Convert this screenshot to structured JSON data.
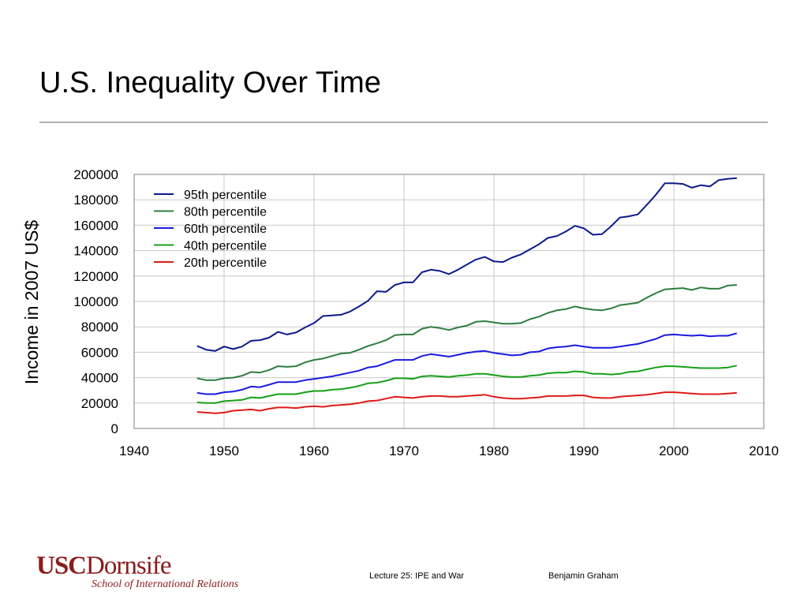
{
  "slide": {
    "title": "U.S. Inequality Over Time"
  },
  "footer": {
    "logo_usc": "USC",
    "logo_dornsife": "Dornsife",
    "logo_school": "School of International Relations",
    "lecture": "Lecture 25: IPE and War",
    "author": "Benjamin Graham"
  },
  "chart_data": {
    "type": "line",
    "title": "",
    "xlabel": "",
    "ylabel": "Income in 2007 US$",
    "xlim": [
      1940,
      2010
    ],
    "ylim": [
      0,
      200000
    ],
    "xticks": [
      1940,
      1950,
      1960,
      1970,
      1980,
      1990,
      2000,
      2010
    ],
    "yticks": [
      0,
      20000,
      40000,
      60000,
      80000,
      100000,
      120000,
      140000,
      160000,
      180000,
      200000
    ],
    "grid": true,
    "legend_position": "top-left",
    "x": [
      1947,
      1948,
      1949,
      1950,
      1951,
      1952,
      1953,
      1954,
      1955,
      1956,
      1957,
      1958,
      1959,
      1960,
      1961,
      1962,
      1963,
      1964,
      1965,
      1966,
      1967,
      1968,
      1969,
      1970,
      1971,
      1972,
      1973,
      1974,
      1975,
      1976,
      1977,
      1978,
      1979,
      1980,
      1981,
      1982,
      1983,
      1984,
      1985,
      1986,
      1987,
      1988,
      1989,
      1990,
      1991,
      1992,
      1993,
      1994,
      1995,
      1996,
      1997,
      1998,
      1999,
      2000,
      2001,
      2002,
      2003,
      2004,
      2005,
      2006,
      2007
    ],
    "series": [
      {
        "name": "95th percentile",
        "color": "#0d1a8a",
        "values": [
          65000,
          62000,
          61000,
          64500,
          62500,
          64500,
          69000,
          69500,
          71500,
          76000,
          74000,
          75500,
          79500,
          83000,
          88500,
          89000,
          89500,
          92000,
          96000,
          100500,
          108000,
          107500,
          113000,
          115000,
          115000,
          123000,
          125000,
          124000,
          121500,
          125000,
          129000,
          133000,
          135000,
          131500,
          131000,
          134500,
          137000,
          141000,
          145000,
          150000,
          151500,
          155000,
          159500,
          157500,
          152500,
          153000,
          159000,
          166000,
          167000,
          168500,
          176000,
          184000,
          193000,
          193000,
          192500,
          189500,
          191500,
          190500,
          195500,
          196500,
          197000
        ]
      },
      {
        "name": "80th percentile",
        "color": "#2e7d3e",
        "values": [
          39500,
          38000,
          38000,
          39500,
          40000,
          41500,
          44500,
          44000,
          46000,
          49000,
          48500,
          49000,
          52000,
          54000,
          55000,
          57000,
          59000,
          59500,
          62000,
          65000,
          67000,
          69500,
          73500,
          74000,
          74000,
          78500,
          80000,
          79000,
          77500,
          79500,
          81000,
          84000,
          84500,
          83500,
          82500,
          82500,
          83000,
          86000,
          88000,
          91000,
          93000,
          94000,
          96000,
          94500,
          93500,
          93000,
          94500,
          97000,
          98000,
          99000,
          103000,
          106500,
          109500,
          110000,
          110500,
          109000,
          111000,
          110000,
          110000,
          112500,
          113000
        ]
      },
      {
        "name": "60th percentile",
        "color": "#1a1ae0",
        "values": [
          28000,
          27000,
          27000,
          28500,
          29000,
          30500,
          33000,
          32500,
          34500,
          36500,
          36500,
          36500,
          38000,
          39000,
          40000,
          41000,
          42500,
          44000,
          45500,
          48000,
          49000,
          51500,
          54000,
          54000,
          54000,
          57000,
          58500,
          57500,
          56500,
          58000,
          59500,
          60500,
          61000,
          59500,
          58500,
          57500,
          58000,
          60000,
          60500,
          63000,
          64000,
          64500,
          65500,
          64500,
          63500,
          63500,
          63500,
          64500,
          65500,
          66500,
          68500,
          70500,
          73500,
          74000,
          73500,
          73000,
          73500,
          72500,
          73000,
          73000,
          75000
        ]
      },
      {
        "name": "40th percentile",
        "color": "#16a016",
        "values": [
          20500,
          20000,
          20000,
          21500,
          22000,
          22500,
          24500,
          24000,
          25500,
          27000,
          27000,
          27000,
          28500,
          29500,
          29500,
          30500,
          31000,
          32000,
          33500,
          35500,
          36000,
          37500,
          39500,
          39500,
          39000,
          41000,
          41500,
          41000,
          40500,
          41500,
          42000,
          43000,
          43000,
          42000,
          41000,
          40500,
          40500,
          41500,
          42000,
          43500,
          44000,
          44000,
          45000,
          44500,
          43000,
          43000,
          42500,
          43000,
          44500,
          45000,
          46500,
          48000,
          49000,
          49000,
          48500,
          48000,
          47500,
          47500,
          47500,
          48000,
          49500
        ]
      },
      {
        "name": "20th percentile",
        "color": "#e01a1a",
        "values": [
          13000,
          12500,
          12000,
          12500,
          14000,
          14500,
          15000,
          14000,
          15500,
          16500,
          16500,
          16000,
          17000,
          17500,
          17000,
          18000,
          18500,
          19000,
          20000,
          21500,
          22000,
          23500,
          25000,
          24500,
          24000,
          25000,
          25500,
          25500,
          25000,
          25000,
          25500,
          26000,
          26500,
          25000,
          24000,
          23500,
          23500,
          24000,
          24500,
          25500,
          25500,
          25500,
          26000,
          26000,
          24500,
          24000,
          24000,
          25000,
          25500,
          26000,
          26500,
          27500,
          28500,
          28500,
          28000,
          27500,
          27000,
          27000,
          27000,
          27500,
          28000
        ]
      }
    ]
  }
}
